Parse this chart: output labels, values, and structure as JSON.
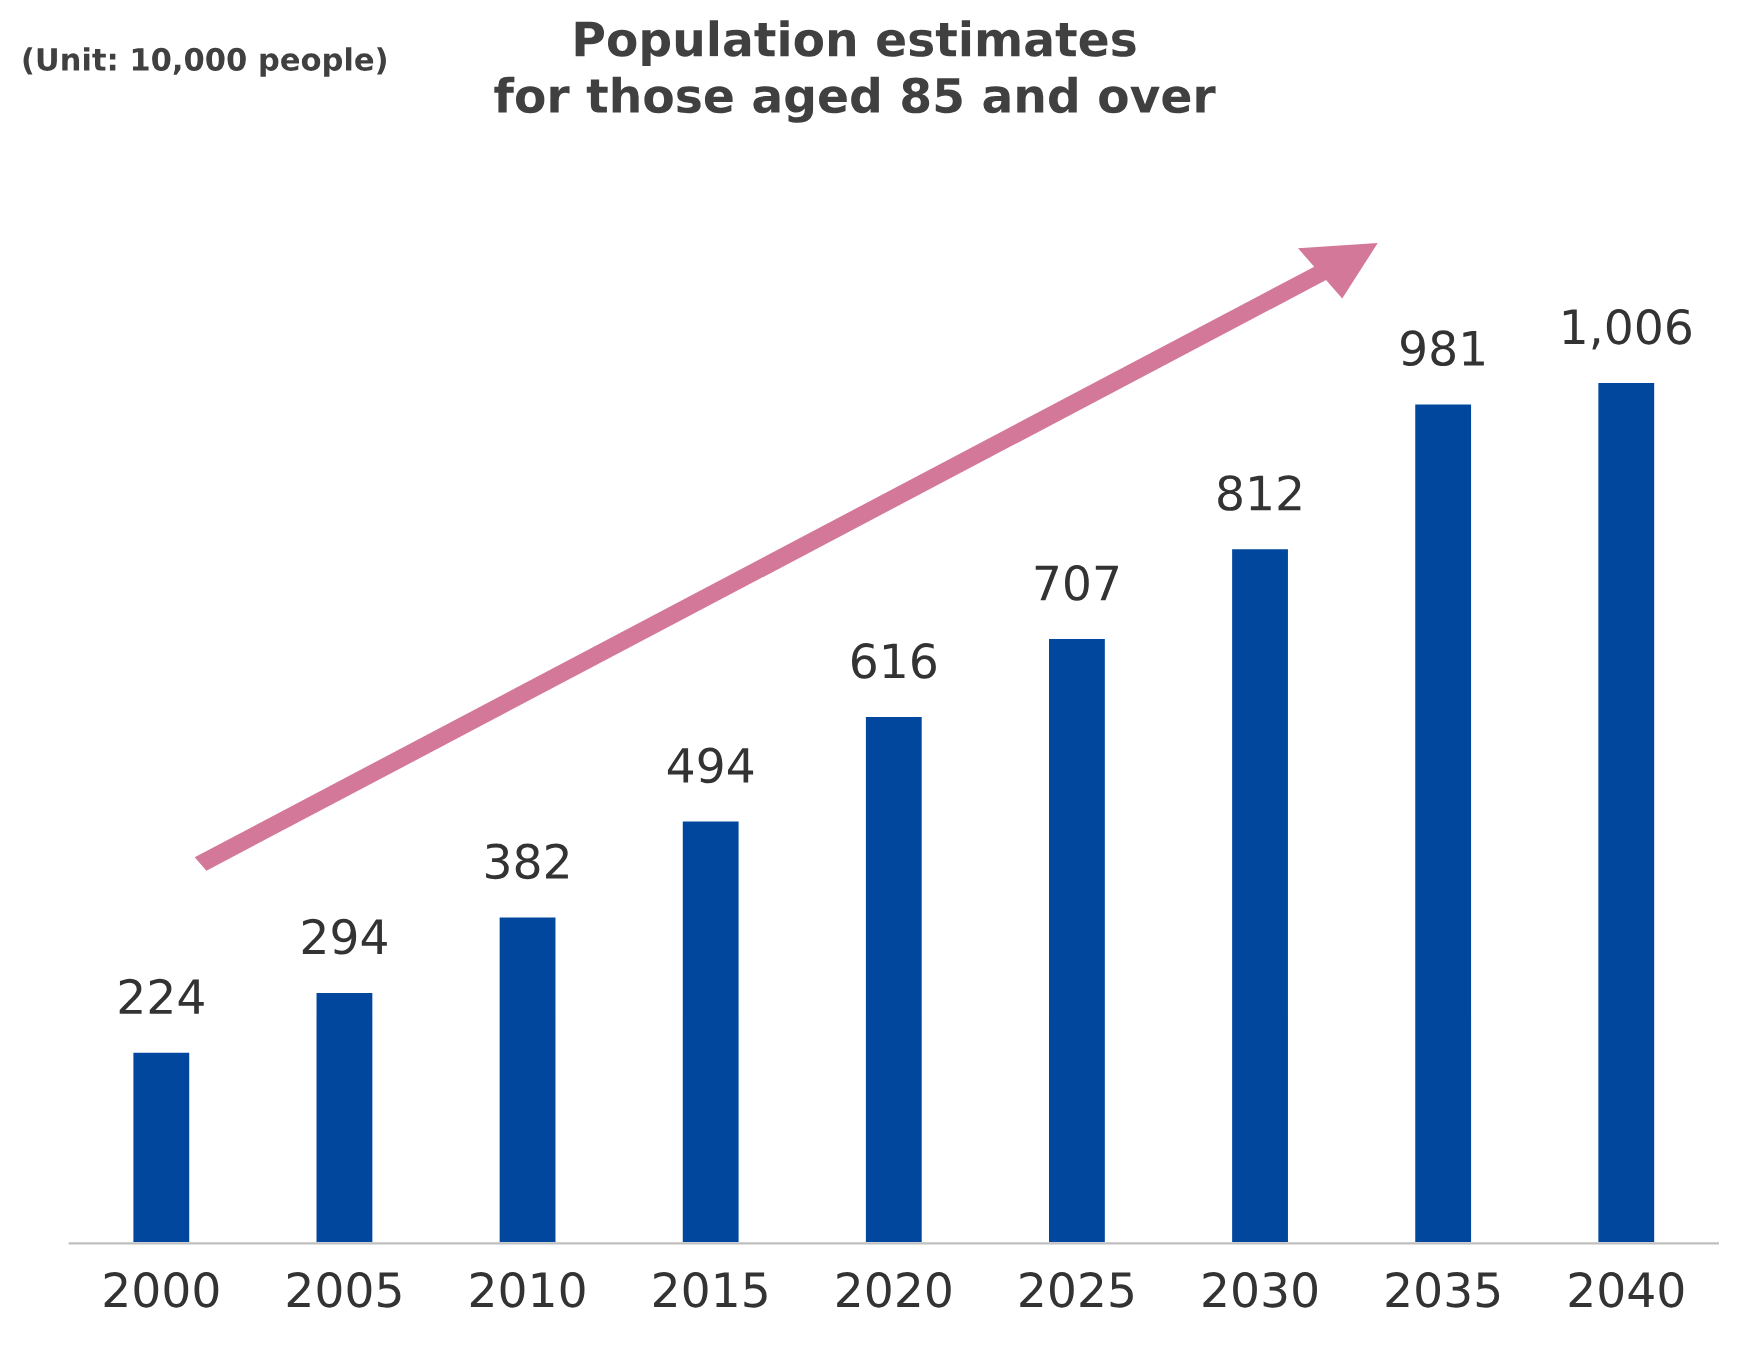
{
  "chart_data": {
    "type": "bar",
    "title": "Population estimates\nfor those aged 85 and over",
    "annotations": [
      "(Unit: 10,000 people)"
    ],
    "categories": [
      "2000",
      "2005",
      "2010",
      "2015",
      "2020",
      "2025",
      "2030",
      "2035",
      "2040"
    ],
    "series": [
      {
        "color": "#00479d",
        "values": [
          224,
          294,
          382,
          494,
          616,
          707,
          812,
          981,
          1006
        ],
        "value_labels": [
          "224",
          "294",
          "382",
          "494",
          "616",
          "707",
          "812",
          "981",
          "1,006"
        ]
      }
    ],
    "tick_labels": "x",
    "grid": false
  }
}
